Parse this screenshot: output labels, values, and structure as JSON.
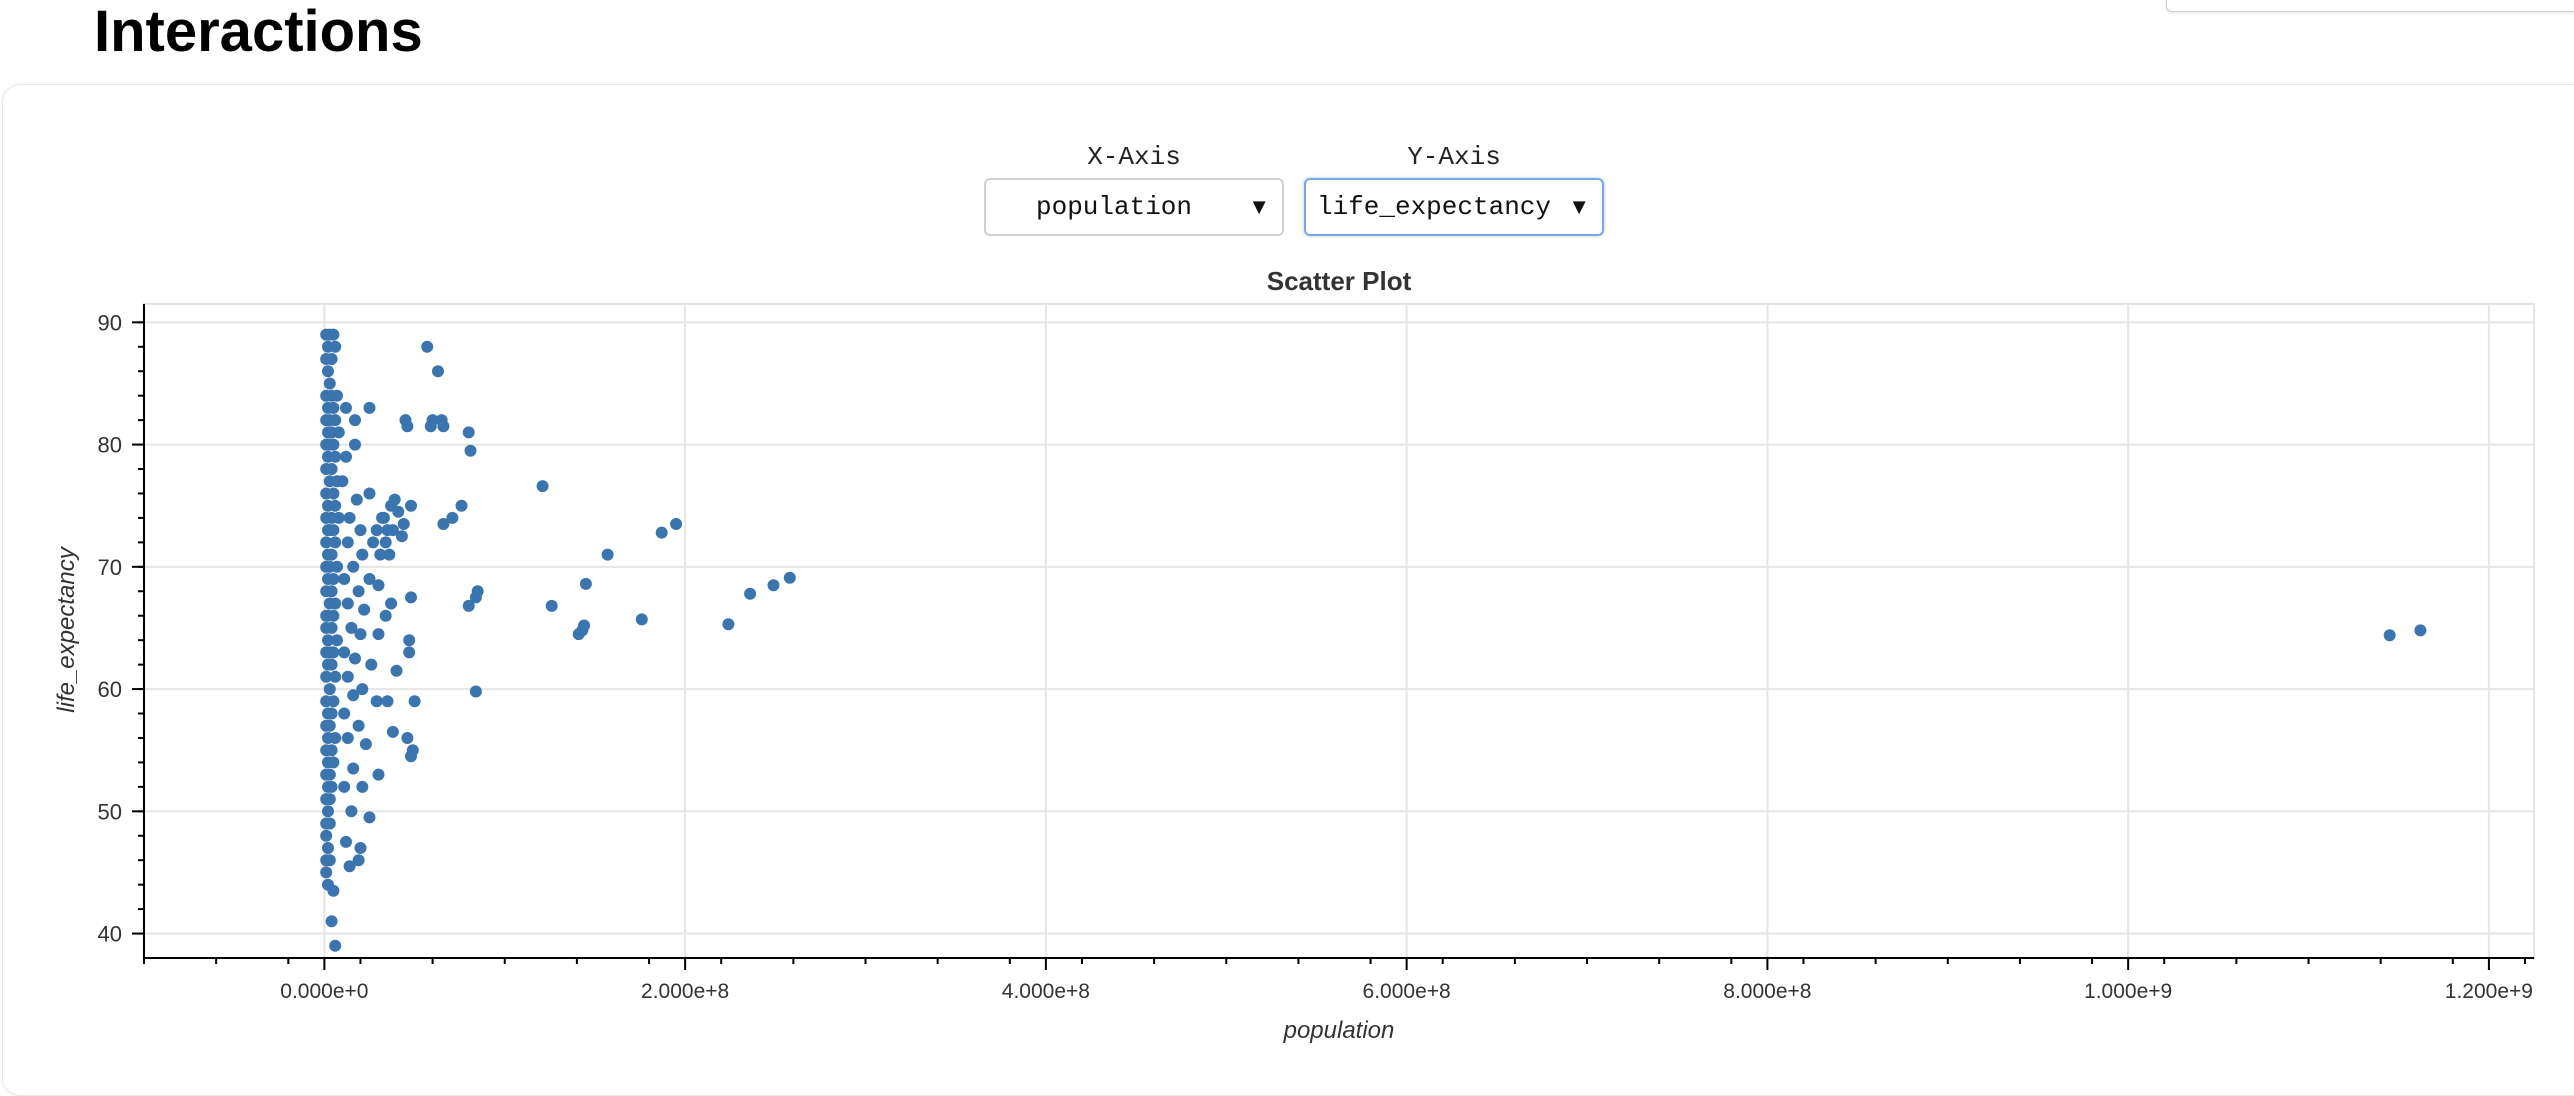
{
  "page": {
    "title": "Interactions"
  },
  "controls": {
    "x_axis": {
      "label": "X-Axis",
      "value": "population"
    },
    "y_axis": {
      "label": "Y-Axis",
      "value": "life_expectancy"
    },
    "arrow_icon": "dropdown-triangle-icon"
  },
  "colors": {
    "point": "#3a75b0",
    "grid": "#e5e5e5",
    "axis": "#000000"
  },
  "chart_data": {
    "type": "scatter",
    "title": "Scatter Plot",
    "xlabel": "population",
    "ylabel": "life_expectancy",
    "xlim": [
      -100000000,
      1225000000
    ],
    "ylim": [
      38,
      91.5
    ],
    "x_ticks": [
      0,
      200000000,
      400000000,
      600000000,
      800000000,
      1000000000,
      1200000000
    ],
    "x_tick_labels": [
      "0.000e+0",
      "2.000e+8",
      "4.000e+8",
      "6.000e+8",
      "8.000e+8",
      "1.000e+9",
      "1.200e+9"
    ],
    "y_ticks": [
      40,
      50,
      60,
      70,
      80,
      90
    ],
    "y_tick_labels": [
      "40",
      "50",
      "60",
      "70",
      "80",
      "90"
    ],
    "grid": true,
    "points": [
      [
        1000000,
        89
      ],
      [
        3000000,
        89
      ],
      [
        5000000,
        89
      ],
      [
        2000000,
        88
      ],
      [
        6000000,
        88
      ],
      [
        1000000,
        87
      ],
      [
        4000000,
        87
      ],
      [
        2000000,
        86
      ],
      [
        3000000,
        85
      ],
      [
        1000000,
        84
      ],
      [
        4000000,
        84
      ],
      [
        7000000,
        84
      ],
      [
        2000000,
        83
      ],
      [
        5000000,
        83
      ],
      [
        1000000,
        82
      ],
      [
        3000000,
        82
      ],
      [
        6000000,
        82
      ],
      [
        2000000,
        81
      ],
      [
        4000000,
        81
      ],
      [
        8000000,
        81
      ],
      [
        1000000,
        80
      ],
      [
        3000000,
        80
      ],
      [
        5000000,
        80
      ],
      [
        2000000,
        79
      ],
      [
        6000000,
        79
      ],
      [
        1000000,
        78
      ],
      [
        4000000,
        78
      ],
      [
        3000000,
        77
      ],
      [
        7000000,
        77
      ],
      [
        1000000,
        76
      ],
      [
        5000000,
        76
      ],
      [
        2000000,
        75
      ],
      [
        6000000,
        75
      ],
      [
        1000000,
        74
      ],
      [
        4000000,
        74
      ],
      [
        8000000,
        74
      ],
      [
        2000000,
        73
      ],
      [
        3000000,
        73
      ],
      [
        5000000,
        73
      ],
      [
        1000000,
        72
      ],
      [
        6000000,
        72
      ],
      [
        2000000,
        71
      ],
      [
        4000000,
        71
      ],
      [
        1000000,
        70
      ],
      [
        3000000,
        70
      ],
      [
        7000000,
        70
      ],
      [
        2000000,
        69
      ],
      [
        5000000,
        69
      ],
      [
        1000000,
        68
      ],
      [
        4000000,
        68
      ],
      [
        3000000,
        67
      ],
      [
        6000000,
        67
      ],
      [
        1000000,
        66
      ],
      [
        2000000,
        66
      ],
      [
        5000000,
        66
      ],
      [
        1000000,
        65
      ],
      [
        4000000,
        65
      ],
      [
        2000000,
        64
      ],
      [
        7000000,
        64
      ],
      [
        1000000,
        63
      ],
      [
        3000000,
        63
      ],
      [
        5000000,
        63
      ],
      [
        2000000,
        62
      ],
      [
        4000000,
        62
      ],
      [
        1000000,
        61
      ],
      [
        6000000,
        61
      ],
      [
        3000000,
        60
      ],
      [
        1000000,
        59
      ],
      [
        5000000,
        59
      ],
      [
        2000000,
        58
      ],
      [
        4000000,
        58
      ],
      [
        1000000,
        57
      ],
      [
        3000000,
        57
      ],
      [
        2000000,
        56
      ],
      [
        6000000,
        56
      ],
      [
        1000000,
        55
      ],
      [
        4000000,
        55
      ],
      [
        2000000,
        54
      ],
      [
        5000000,
        54
      ],
      [
        1000000,
        53
      ],
      [
        3000000,
        53
      ],
      [
        2000000,
        52
      ],
      [
        4000000,
        52
      ],
      [
        1000000,
        51
      ],
      [
        3000000,
        51
      ],
      [
        2000000,
        50
      ],
      [
        1000000,
        49
      ],
      [
        3000000,
        49
      ],
      [
        1000000,
        48
      ],
      [
        2000000,
        47
      ],
      [
        1000000,
        46
      ],
      [
        3000000,
        46
      ],
      [
        1000000,
        45
      ],
      [
        2000000,
        44
      ],
      [
        5000000,
        43.5
      ],
      [
        4000000,
        41
      ],
      [
        6000000,
        39
      ],
      [
        12000000,
        83
      ],
      [
        17000000,
        82
      ],
      [
        25000000,
        83
      ],
      [
        12000000,
        79
      ],
      [
        17000000,
        80
      ],
      [
        10000000,
        77
      ],
      [
        18000000,
        75.5
      ],
      [
        25000000,
        76
      ],
      [
        14000000,
        74
      ],
      [
        20000000,
        73
      ],
      [
        13000000,
        72
      ],
      [
        21000000,
        71
      ],
      [
        27000000,
        72
      ],
      [
        16000000,
        70
      ],
      [
        11000000,
        69
      ],
      [
        19000000,
        68
      ],
      [
        25000000,
        69
      ],
      [
        13000000,
        67
      ],
      [
        22000000,
        66.5
      ],
      [
        15000000,
        65
      ],
      [
        20000000,
        64.5
      ],
      [
        11000000,
        63
      ],
      [
        17000000,
        62.5
      ],
      [
        26000000,
        62
      ],
      [
        13000000,
        61
      ],
      [
        21000000,
        60
      ],
      [
        16000000,
        59.5
      ],
      [
        11000000,
        58
      ],
      [
        19000000,
        57
      ],
      [
        13000000,
        56
      ],
      [
        23000000,
        55.5
      ],
      [
        16000000,
        53.5
      ],
      [
        11000000,
        52
      ],
      [
        21000000,
        52
      ],
      [
        15000000,
        50
      ],
      [
        25000000,
        49.5
      ],
      [
        12000000,
        47.5
      ],
      [
        20000000,
        47
      ],
      [
        14000000,
        45.5
      ],
      [
        19000000,
        46
      ],
      [
        33000000,
        74
      ],
      [
        35000000,
        73
      ],
      [
        37000000,
        75
      ],
      [
        39000000,
        75.5
      ],
      [
        41000000,
        74.5
      ],
      [
        38000000,
        73
      ],
      [
        34000000,
        72
      ],
      [
        31000000,
        71
      ],
      [
        36000000,
        71
      ],
      [
        29000000,
        73
      ],
      [
        32000000,
        74
      ],
      [
        30000000,
        68.5
      ],
      [
        37000000,
        67
      ],
      [
        34000000,
        66
      ],
      [
        30000000,
        64.5
      ],
      [
        40000000,
        61.5
      ],
      [
        29000000,
        59
      ],
      [
        35000000,
        59
      ],
      [
        38000000,
        56.5
      ],
      [
        30000000,
        53
      ],
      [
        45000000,
        82
      ],
      [
        46000000,
        81.5
      ],
      [
        57000000,
        88
      ],
      [
        59000000,
        81.5
      ],
      [
        63000000,
        86
      ],
      [
        60000000,
        82
      ],
      [
        65000000,
        82
      ],
      [
        66000000,
        81.5
      ],
      [
        80000000,
        81
      ],
      [
        81000000,
        79.5
      ],
      [
        44000000,
        73.5
      ],
      [
        48000000,
        75
      ],
      [
        43000000,
        72.5
      ],
      [
        76000000,
        75
      ],
      [
        66000000,
        73.5
      ],
      [
        71000000,
        74
      ],
      [
        48000000,
        67.5
      ],
      [
        80000000,
        66.8
      ],
      [
        84000000,
        67.5
      ],
      [
        85000000,
        68
      ],
      [
        47000000,
        64
      ],
      [
        47000000,
        63
      ],
      [
        50000000,
        59
      ],
      [
        84000000,
        59.8
      ],
      [
        46000000,
        56
      ],
      [
        49000000,
        55
      ],
      [
        48000000,
        54.5
      ],
      [
        126000000,
        66.8
      ],
      [
        121000000,
        76.6
      ],
      [
        145000000,
        68.6
      ],
      [
        144000000,
        65.2
      ],
      [
        143000000,
        64.8
      ],
      [
        141000000,
        64.5
      ],
      [
        157000000,
        71
      ],
      [
        176000000,
        65.7
      ],
      [
        187000000,
        72.8
      ],
      [
        195000000,
        73.5
      ],
      [
        224000000,
        65.3
      ],
      [
        236000000,
        67.8
      ],
      [
        249000000,
        68.5
      ],
      [
        258000000,
        69.1
      ],
      [
        1145000000,
        64.4
      ],
      [
        1162000000,
        64.8
      ]
    ]
  }
}
